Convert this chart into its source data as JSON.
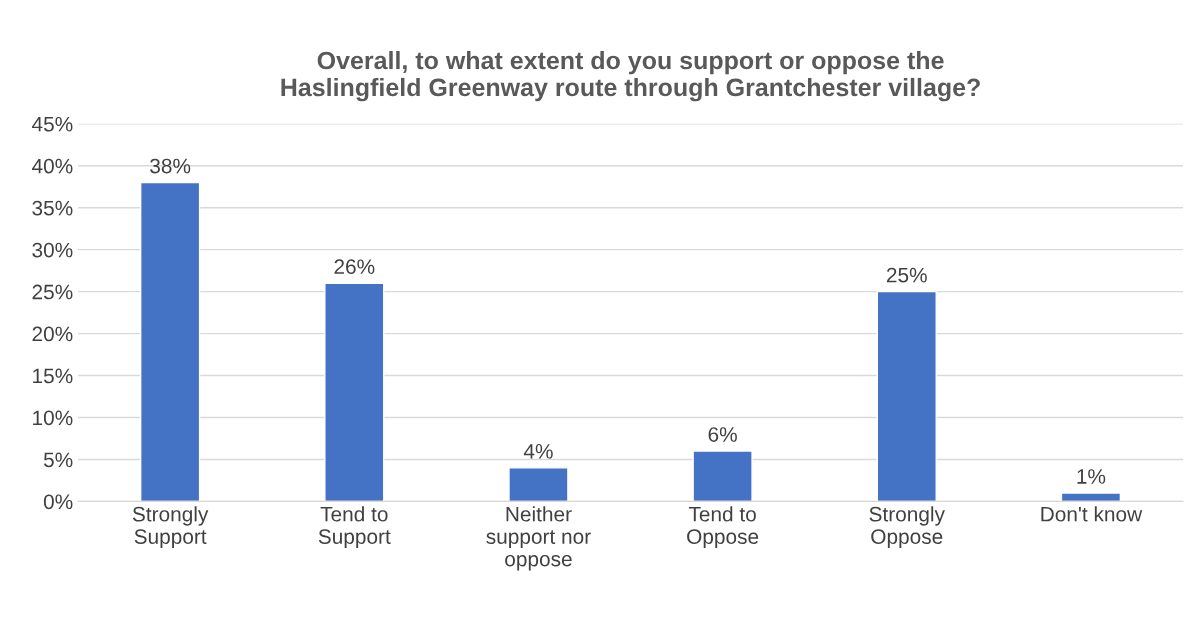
{
  "chart_data": {
    "type": "bar",
    "title": "Overall, to what extent do you support or oppose the\nHaslingfield Greenway route through Grantchester village?",
    "categories": [
      "Strongly\nSupport",
      "Tend to\nSupport",
      "Neither\nsupport nor\noppose",
      "Tend to\nOppose",
      "Strongly\nOppose",
      "Don't know"
    ],
    "values": [
      38,
      26,
      4,
      6,
      25,
      1
    ],
    "value_labels": [
      "38%",
      "26%",
      "4%",
      "6%",
      "25%",
      "1%"
    ],
    "color": "#4472c4",
    "ylim": [
      0,
      45
    ],
    "yticks": [
      {
        "value": 0,
        "label": "0%"
      },
      {
        "value": 5,
        "label": "5%"
      },
      {
        "value": 10,
        "label": "10%"
      },
      {
        "value": 15,
        "label": "15%"
      },
      {
        "value": 20,
        "label": "20%"
      },
      {
        "value": 25,
        "label": "25%"
      },
      {
        "value": 30,
        "label": "30%"
      },
      {
        "value": 35,
        "label": "35%"
      },
      {
        "value": 40,
        "label": "40%"
      },
      {
        "value": 45,
        "label": "45%"
      }
    ],
    "grid": "y"
  }
}
